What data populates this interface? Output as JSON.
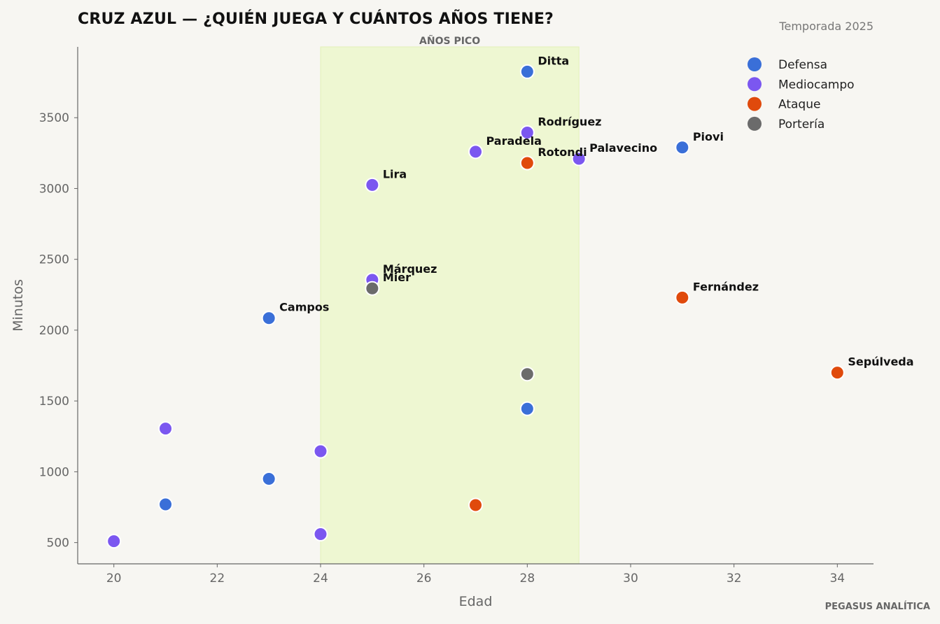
{
  "title": "CRUZ AZUL — ¿QUIÉN JUEGA Y CUÁNTOS AÑOS TIENE?",
  "subtitle": "Temporada 2025",
  "credit": "PEGASUS ANALÍTICA",
  "colors": {
    "background": "#f7f6f2",
    "defensa": "#3a6fd8",
    "mediocampo": "#7b57f0",
    "ataque": "#e04a0c",
    "porteria": "#6b6b6b",
    "band": "#eef7d2",
    "axis": "#666666"
  },
  "chart_data": {
    "type": "scatter",
    "title": "CRUZ AZUL — ¿QUIÉN JUEGA Y CUÁNTOS AÑOS TIENE?",
    "xlabel": "Edad",
    "ylabel": "Minutos",
    "xlim": [
      19.3,
      34.7
    ],
    "ylim": [
      350,
      4000
    ],
    "xticks": [
      20,
      22,
      24,
      26,
      28,
      30,
      32,
      34
    ],
    "yticks": [
      500,
      1000,
      1500,
      2000,
      2500,
      3000,
      3500
    ],
    "grid": false,
    "legend_position": "top-right",
    "band": {
      "x_range": [
        24,
        29
      ],
      "label": "AÑOS PICO"
    },
    "series": [
      {
        "name": "Defensa",
        "color_key": "defensa",
        "points": [
          {
            "x": 28,
            "y": 3825,
            "label": "Ditta"
          },
          {
            "x": 31,
            "y": 3290,
            "label": "Piovi"
          },
          {
            "x": 23,
            "y": 2085,
            "label": "Campos"
          },
          {
            "x": 28,
            "y": 1445,
            "label": ""
          },
          {
            "x": 23,
            "y": 950,
            "label": ""
          },
          {
            "x": 21,
            "y": 770,
            "label": ""
          }
        ]
      },
      {
        "name": "Mediocampo",
        "color_key": "mediocampo",
        "points": [
          {
            "x": 28,
            "y": 3395,
            "label": "Rodríguez"
          },
          {
            "x": 27,
            "y": 3260,
            "label": "Paradela"
          },
          {
            "x": 29,
            "y": 3210,
            "label": "Palavecino"
          },
          {
            "x": 25,
            "y": 3025,
            "label": "Lira"
          },
          {
            "x": 25,
            "y": 2355,
            "label": "Márquez"
          },
          {
            "x": 21,
            "y": 1305,
            "label": ""
          },
          {
            "x": 24,
            "y": 1145,
            "label": ""
          },
          {
            "x": 24,
            "y": 560,
            "label": ""
          },
          {
            "x": 20,
            "y": 510,
            "label": ""
          }
        ]
      },
      {
        "name": "Ataque",
        "color_key": "ataque",
        "points": [
          {
            "x": 28,
            "y": 3180,
            "label": "Rotondi"
          },
          {
            "x": 31,
            "y": 2230,
            "label": "Fernández"
          },
          {
            "x": 34,
            "y": 1700,
            "label": "Sepúlveda"
          },
          {
            "x": 27,
            "y": 765,
            "label": ""
          }
        ]
      },
      {
        "name": "Portería",
        "color_key": "porteria",
        "points": [
          {
            "x": 25,
            "y": 2295,
            "label": "Mier"
          },
          {
            "x": 28,
            "y": 1690,
            "label": ""
          }
        ]
      }
    ]
  }
}
